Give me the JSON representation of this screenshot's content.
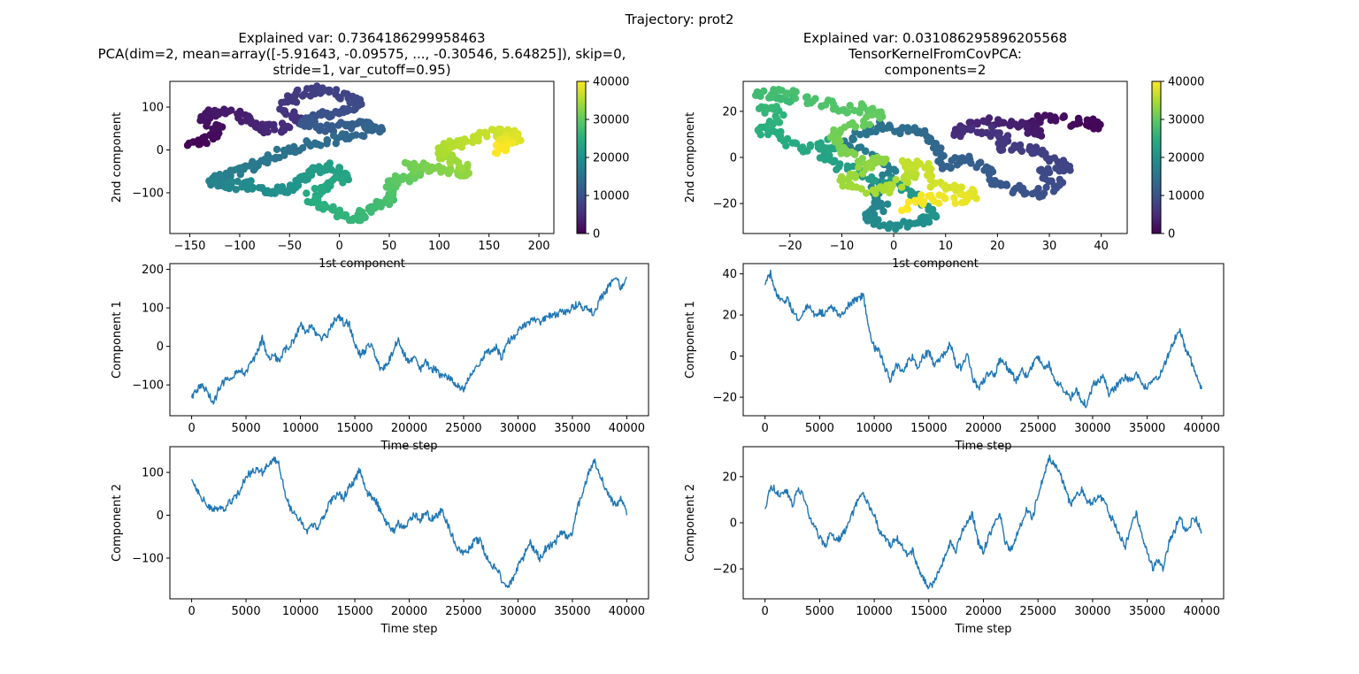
{
  "figure": {
    "suptitle": "Trajectory: prot2"
  },
  "colors": {
    "line": "#1f77b4",
    "frame": "#000000"
  },
  "colormap": [
    "#440154",
    "#472d7b",
    "#3b528b",
    "#2c728e",
    "#21918c",
    "#28ae80",
    "#5ec962",
    "#addc30",
    "#fde725"
  ],
  "chart_data": [
    {
      "id": "pca-scatter",
      "type": "scatter",
      "title_lines": [
        "Explained var: 0.7364186299958463",
        "PCA(dim=2, mean=array([-5.91643, -0.09575, ..., -0.30546,  5.64825]), skip=0,",
        "stride=1, var_cutoff=0.95)"
      ],
      "xlabel": "1st component",
      "ylabel": "2nd component",
      "xlim": [
        -170,
        215
      ],
      "ylim": [
        -195,
        160
      ],
      "xticks": [
        -150,
        -100,
        -50,
        0,
        50,
        100,
        150,
        200
      ],
      "yticks": [
        -100,
        0,
        100
      ],
      "colorbar": {
        "ticks": [
          0,
          10000,
          20000,
          30000,
          40000
        ],
        "range": [
          0,
          40000
        ]
      },
      "path": [
        [
          -150,
          10
        ],
        [
          -130,
          25
        ],
        [
          -120,
          50
        ],
        [
          -140,
          80
        ],
        [
          -120,
          90
        ],
        [
          -95,
          75
        ],
        [
          -80,
          50
        ],
        [
          -60,
          50
        ],
        [
          -40,
          70
        ],
        [
          -60,
          100
        ],
        [
          -40,
          130
        ],
        [
          -20,
          140
        ],
        [
          10,
          120
        ],
        [
          20,
          110
        ],
        [
          5,
          90
        ],
        [
          -20,
          80
        ],
        [
          -40,
          60
        ],
        [
          -10,
          50
        ],
        [
          20,
          60
        ],
        [
          40,
          50
        ],
        [
          10,
          30
        ],
        [
          -20,
          20
        ],
        [
          -50,
          0
        ],
        [
          -70,
          -20
        ],
        [
          -90,
          -40
        ],
        [
          -110,
          -60
        ],
        [
          -130,
          -75
        ],
        [
          -110,
          -85
        ],
        [
          -90,
          -80
        ],
        [
          -70,
          -95
        ],
        [
          -50,
          -90
        ],
        [
          -40,
          -70
        ],
        [
          -30,
          -50
        ],
        [
          -10,
          -40
        ],
        [
          10,
          -60
        ],
        [
          -10,
          -80
        ],
        [
          -30,
          -110
        ],
        [
          -20,
          -130
        ],
        [
          0,
          -150
        ],
        [
          20,
          -160
        ],
        [
          30,
          -130
        ],
        [
          50,
          -120
        ],
        [
          55,
          -100
        ],
        [
          50,
          -80
        ],
        [
          60,
          -70
        ],
        [
          80,
          -60
        ],
        [
          70,
          -40
        ],
        [
          90,
          -40
        ],
        [
          110,
          -50
        ],
        [
          130,
          -55
        ],
        [
          120,
          -30
        ],
        [
          100,
          -10
        ],
        [
          110,
          10
        ],
        [
          130,
          20
        ],
        [
          150,
          40
        ],
        [
          170,
          40
        ],
        [
          180,
          30
        ],
        [
          160,
          20
        ],
        [
          170,
          10
        ],
        [
          160,
          0
        ]
      ]
    },
    {
      "id": "tensor-scatter",
      "type": "scatter",
      "title_lines": [
        "Explained var: 0.031086295896205568",
        "TensorKernelFromCovPCA:",
        "components=2"
      ],
      "xlabel": "1st component",
      "ylabel": "2nd component",
      "xlim": [
        -29,
        45
      ],
      "ylim": [
        -33,
        33
      ],
      "xticks": [
        -20,
        -10,
        0,
        10,
        20,
        30,
        40
      ],
      "yticks": [
        -20,
        0,
        20
      ],
      "colorbar": {
        "ticks": [
          0,
          10000,
          20000,
          30000,
          40000
        ],
        "range": [
          0,
          40000
        ]
      },
      "path": [
        [
          36,
          16
        ],
        [
          40,
          14
        ],
        [
          34,
          15
        ],
        [
          30,
          18
        ],
        [
          26,
          14
        ],
        [
          28,
          10
        ],
        [
          24,
          14
        ],
        [
          20,
          16
        ],
        [
          14,
          14
        ],
        [
          12,
          10
        ],
        [
          18,
          12
        ],
        [
          22,
          8
        ],
        [
          20,
          4
        ],
        [
          26,
          4
        ],
        [
          30,
          0
        ],
        [
          34,
          -4
        ],
        [
          28,
          -6
        ],
        [
          32,
          -12
        ],
        [
          28,
          -16
        ],
        [
          24,
          -14
        ],
        [
          20,
          -12
        ],
        [
          18,
          -6
        ],
        [
          14,
          0
        ],
        [
          10,
          -4
        ],
        [
          8,
          4
        ],
        [
          6,
          10
        ],
        [
          2,
          12
        ],
        [
          -2,
          14
        ],
        [
          -6,
          10
        ],
        [
          -10,
          6
        ],
        [
          -4,
          2
        ],
        [
          0,
          -6
        ],
        [
          -4,
          -14
        ],
        [
          -2,
          -22
        ],
        [
          -6,
          -26
        ],
        [
          0,
          -30
        ],
        [
          4,
          -28
        ],
        [
          8,
          -26
        ],
        [
          6,
          -20
        ],
        [
          2,
          -14
        ],
        [
          -4,
          -8
        ],
        [
          -10,
          -4
        ],
        [
          -14,
          0
        ],
        [
          -12,
          6
        ],
        [
          -18,
          4
        ],
        [
          -22,
          10
        ],
        [
          -26,
          12
        ],
        [
          -22,
          18
        ],
        [
          -26,
          22
        ],
        [
          -20,
          26
        ],
        [
          -26,
          28
        ],
        [
          -20,
          28
        ],
        [
          -14,
          24
        ],
        [
          -10,
          20
        ],
        [
          -6,
          22
        ],
        [
          -2,
          18
        ],
        [
          -8,
          14
        ],
        [
          -12,
          10
        ],
        [
          -10,
          4
        ],
        [
          -6,
          -2
        ],
        [
          -2,
          0
        ],
        [
          -6,
          -6
        ],
        [
          -10,
          -10
        ],
        [
          -4,
          -16
        ],
        [
          0,
          -12
        ],
        [
          4,
          -8
        ],
        [
          2,
          -2
        ],
        [
          6,
          -4
        ],
        [
          8,
          -12
        ],
        [
          12,
          -14
        ],
        [
          16,
          -16
        ],
        [
          12,
          -18
        ],
        [
          6,
          -18
        ],
        [
          2,
          -22
        ]
      ]
    },
    {
      "id": "pca-comp1",
      "type": "line",
      "xlabel": "Time step",
      "ylabel": "Component 1",
      "xlim": [
        -2000,
        42000
      ],
      "ylim": [
        -180,
        215
      ],
      "xticks": [
        0,
        5000,
        10000,
        15000,
        20000,
        25000,
        30000,
        35000,
        40000
      ],
      "yticks": [
        -100,
        0,
        100,
        200
      ],
      "x": [
        0,
        500,
        1000,
        1500,
        2000,
        2500,
        3000,
        3500,
        4000,
        4500,
        5000,
        5500,
        6000,
        6500,
        7000,
        7500,
        8000,
        8500,
        9000,
        9500,
        10000,
        10500,
        11000,
        11500,
        12000,
        12500,
        13000,
        13500,
        14000,
        14500,
        15000,
        15500,
        16000,
        16500,
        17000,
        17500,
        18000,
        18500,
        19000,
        19500,
        20000,
        20500,
        21000,
        21500,
        22000,
        22500,
        23000,
        23500,
        24000,
        24500,
        25000,
        25500,
        26000,
        26500,
        27000,
        27500,
        28000,
        28500,
        29000,
        29500,
        30000,
        30500,
        31000,
        31500,
        32000,
        32500,
        33000,
        33500,
        34000,
        34500,
        35000,
        35500,
        36000,
        36500,
        37000,
        37500,
        38000,
        38500,
        39000,
        39500,
        40000
      ],
      "y": [
        -130,
        -110,
        -105,
        -120,
        -150,
        -110,
        -90,
        -80,
        -70,
        -60,
        -70,
        -40,
        -20,
        20,
        -30,
        -20,
        -40,
        -10,
        0,
        20,
        60,
        40,
        50,
        30,
        20,
        30,
        60,
        80,
        60,
        60,
        0,
        -20,
        -10,
        10,
        -40,
        -60,
        -50,
        -10,
        20,
        -20,
        -40,
        -30,
        -60,
        -40,
        -60,
        -60,
        -80,
        -80,
        -90,
        -100,
        -110,
        -80,
        -60,
        -40,
        -20,
        -10,
        0,
        -30,
        10,
        20,
        40,
        50,
        60,
        70,
        60,
        70,
        80,
        80,
        90,
        90,
        100,
        110,
        100,
        100,
        80,
        120,
        140,
        160,
        180,
        150,
        180
      ]
    },
    {
      "id": "tensor-comp1",
      "type": "line",
      "xlabel": "Time step",
      "ylabel": "Component 1",
      "xlim": [
        -2000,
        42000
      ],
      "ylim": [
        -29,
        45
      ],
      "xticks": [
        0,
        5000,
        10000,
        15000,
        20000,
        25000,
        30000,
        35000,
        40000
      ],
      "yticks": [
        -20,
        0,
        20,
        40
      ],
      "x": [
        0,
        500,
        1000,
        1500,
        2000,
        2500,
        3000,
        3500,
        4000,
        4500,
        5000,
        5500,
        6000,
        6500,
        7000,
        7500,
        8000,
        8500,
        9000,
        9500,
        10000,
        10500,
        11000,
        11500,
        12000,
        12500,
        13000,
        13500,
        14000,
        14500,
        15000,
        15500,
        16000,
        16500,
        17000,
        17500,
        18000,
        18500,
        19000,
        19500,
        20000,
        20500,
        21000,
        21500,
        22000,
        22500,
        23000,
        23500,
        24000,
        24500,
        25000,
        25500,
        26000,
        26500,
        27000,
        27500,
        28000,
        28500,
        29000,
        29500,
        30000,
        30500,
        31000,
        31500,
        32000,
        32500,
        33000,
        33500,
        34000,
        34500,
        35000,
        35500,
        36000,
        36500,
        37000,
        37500,
        38000,
        38500,
        39000,
        39500,
        40000
      ],
      "y": [
        35,
        40,
        30,
        26,
        28,
        22,
        18,
        22,
        24,
        20,
        22,
        20,
        24,
        22,
        20,
        24,
        26,
        28,
        30,
        14,
        4,
        2,
        -6,
        -12,
        -4,
        -8,
        -4,
        0,
        -6,
        0,
        2,
        -4,
        -2,
        2,
        6,
        -4,
        -6,
        2,
        -10,
        -16,
        -12,
        -8,
        -10,
        -2,
        -4,
        -8,
        -12,
        -6,
        -10,
        -4,
        0,
        -6,
        -4,
        -12,
        -14,
        -18,
        -20,
        -16,
        -22,
        -24,
        -14,
        -12,
        -10,
        -18,
        -16,
        -12,
        -10,
        -12,
        -8,
        -14,
        -16,
        -12,
        -10,
        -6,
        2,
        8,
        12,
        4,
        -2,
        -10,
        -16
      ]
    },
    {
      "id": "pca-comp2",
      "type": "line",
      "xlabel": "Time step",
      "ylabel": "Component 2",
      "xlim": [
        -2000,
        42000
      ],
      "ylim": [
        -195,
        160
      ],
      "xticks": [
        0,
        5000,
        10000,
        15000,
        20000,
        25000,
        30000,
        35000,
        40000
      ],
      "yticks": [
        -100,
        0,
        100
      ],
      "x": [
        0,
        500,
        1000,
        1500,
        2000,
        2500,
        3000,
        3500,
        4000,
        4500,
        5000,
        5500,
        6000,
        6500,
        7000,
        7500,
        8000,
        8500,
        9000,
        9500,
        10000,
        10500,
        11000,
        11500,
        12000,
        12500,
        13000,
        13500,
        14000,
        14500,
        15000,
        15500,
        16000,
        16500,
        17000,
        17500,
        18000,
        18500,
        19000,
        19500,
        20000,
        20500,
        21000,
        21500,
        22000,
        22500,
        23000,
        23500,
        24000,
        24500,
        25000,
        25500,
        26000,
        26500,
        27000,
        27500,
        28000,
        28500,
        29000,
        29500,
        30000,
        30500,
        31000,
        31500,
        32000,
        32500,
        33000,
        33500,
        34000,
        34500,
        35000,
        35500,
        36000,
        36500,
        37000,
        37500,
        38000,
        38500,
        39000,
        39500,
        40000
      ],
      "y": [
        85,
        60,
        40,
        20,
        10,
        20,
        10,
        30,
        40,
        60,
        90,
        100,
        110,
        100,
        120,
        130,
        120,
        60,
        20,
        0,
        -10,
        -40,
        -20,
        -30,
        -10,
        20,
        40,
        50,
        40,
        70,
        80,
        110,
        60,
        40,
        30,
        0,
        -20,
        -40,
        -20,
        -30,
        -10,
        0,
        -10,
        10,
        -10,
        0,
        10,
        -20,
        -50,
        -80,
        -90,
        -80,
        -60,
        -60,
        -90,
        -120,
        -120,
        -150,
        -170,
        -150,
        -120,
        -100,
        -60,
        -80,
        -100,
        -80,
        -70,
        -60,
        -40,
        -50,
        -40,
        20,
        60,
        100,
        130,
        100,
        60,
        40,
        20,
        40,
        0
      ]
    },
    {
      "id": "tensor-comp2",
      "type": "line",
      "xlabel": "Time step",
      "ylabel": "Component 2",
      "xlim": [
        -2000,
        42000
      ],
      "ylim": [
        -33,
        33
      ],
      "xticks": [
        0,
        5000,
        10000,
        15000,
        20000,
        25000,
        30000,
        35000,
        40000
      ],
      "yticks": [
        -20,
        0,
        20
      ],
      "x": [
        0,
        500,
        1000,
        1500,
        2000,
        2500,
        3000,
        3500,
        4000,
        4500,
        5000,
        5500,
        6000,
        6500,
        7000,
        7500,
        8000,
        8500,
        9000,
        9500,
        10000,
        10500,
        11000,
        11500,
        12000,
        12500,
        13000,
        13500,
        14000,
        14500,
        15000,
        15500,
        16000,
        16500,
        17000,
        17500,
        18000,
        18500,
        19000,
        19500,
        20000,
        20500,
        21000,
        21500,
        22000,
        22500,
        23000,
        23500,
        24000,
        24500,
        25000,
        25500,
        26000,
        26500,
        27000,
        27500,
        28000,
        28500,
        29000,
        29500,
        30000,
        30500,
        31000,
        31500,
        32000,
        32500,
        33000,
        33500,
        34000,
        34500,
        35000,
        35500,
        36000,
        36500,
        37000,
        37500,
        38000,
        38500,
        39000,
        39500,
        40000
      ],
      "y": [
        6,
        16,
        14,
        12,
        14,
        8,
        14,
        12,
        4,
        -2,
        -6,
        -10,
        -4,
        -8,
        -6,
        -2,
        4,
        10,
        12,
        8,
        4,
        -4,
        -6,
        -10,
        -6,
        -10,
        -14,
        -12,
        -20,
        -24,
        -28,
        -26,
        -20,
        -14,
        -8,
        -12,
        -4,
        0,
        4,
        -8,
        -12,
        -6,
        0,
        4,
        -8,
        -12,
        -6,
        0,
        6,
        2,
        12,
        20,
        28,
        26,
        22,
        14,
        8,
        12,
        14,
        10,
        8,
        12,
        10,
        4,
        0,
        -6,
        -10,
        -2,
        4,
        -6,
        -12,
        -20,
        -16,
        -20,
        -8,
        -4,
        4,
        -4,
        0,
        2,
        -4
      ]
    }
  ]
}
